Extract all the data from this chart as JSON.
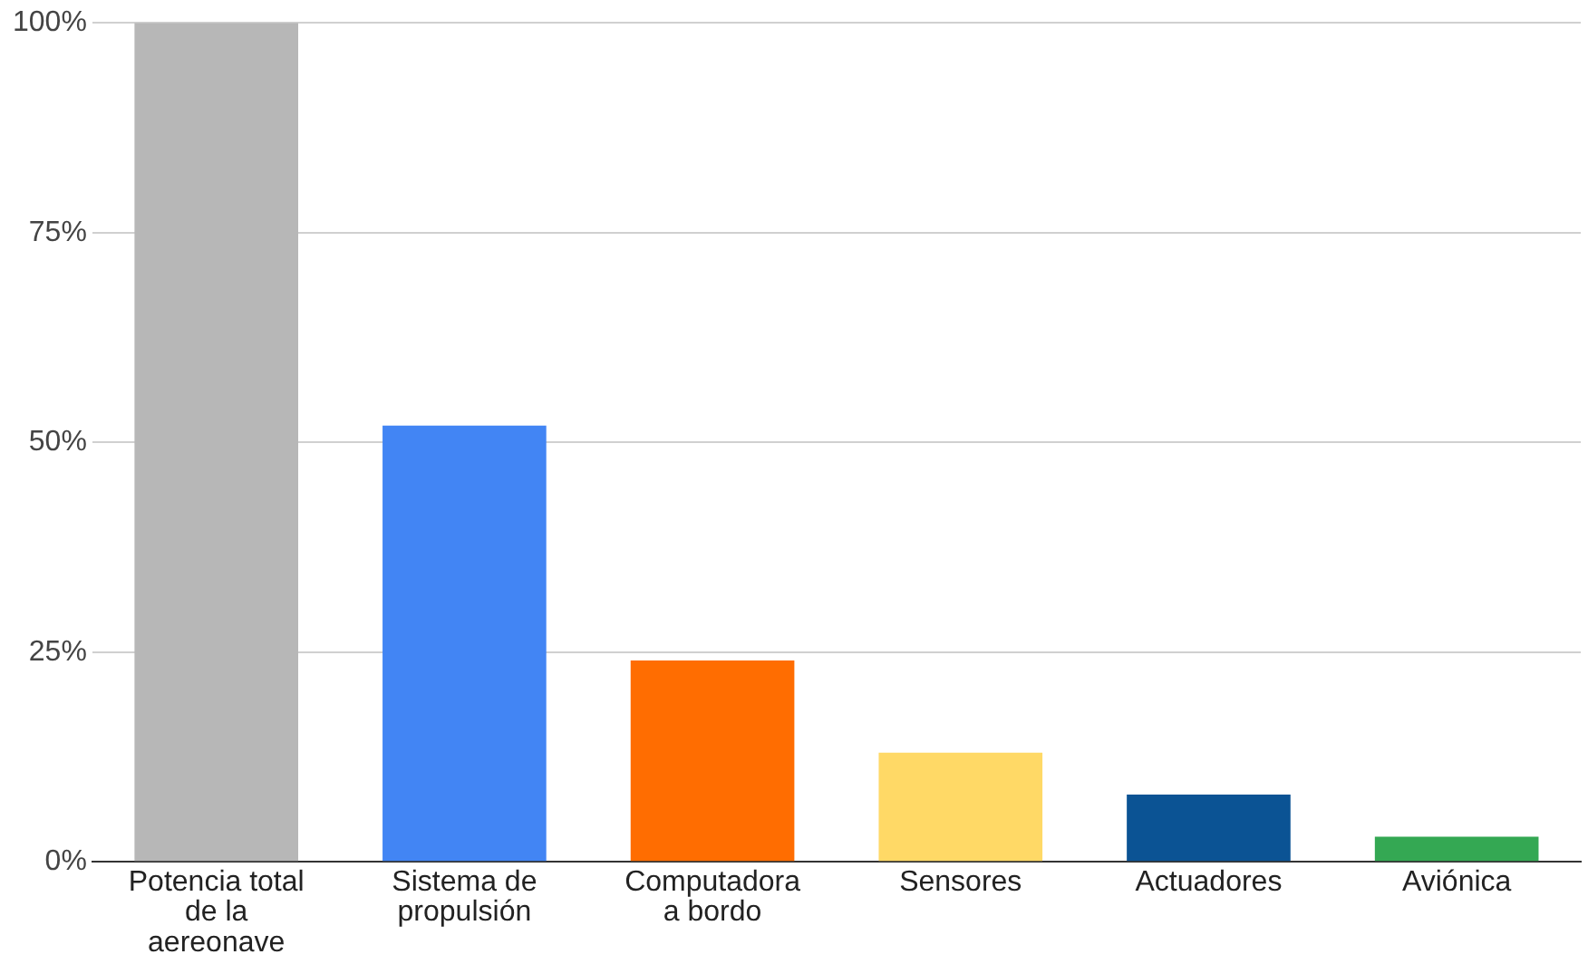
{
  "chart_data": {
    "type": "bar",
    "categories": [
      "Potencia total de la aereonave",
      "Sistema de propulsión",
      "Computadora a bordo",
      "Sensores",
      "Actuadores",
      "Aviónica"
    ],
    "values": [
      100,
      52,
      24,
      13,
      8,
      3
    ],
    "colors": [
      "#b7b7b7",
      "#4285f4",
      "#ff6d01",
      "#ffd966",
      "#0b5394",
      "#34a853"
    ],
    "ylim": [
      0,
      100
    ],
    "yticks": [
      {
        "value": 0,
        "label": "0%"
      },
      {
        "value": 25,
        "label": "25%"
      },
      {
        "value": 50,
        "label": "50%"
      },
      {
        "value": 75,
        "label": "75%"
      },
      {
        "value": 100,
        "label": "100%"
      }
    ],
    "grid": "y",
    "legend": false
  }
}
